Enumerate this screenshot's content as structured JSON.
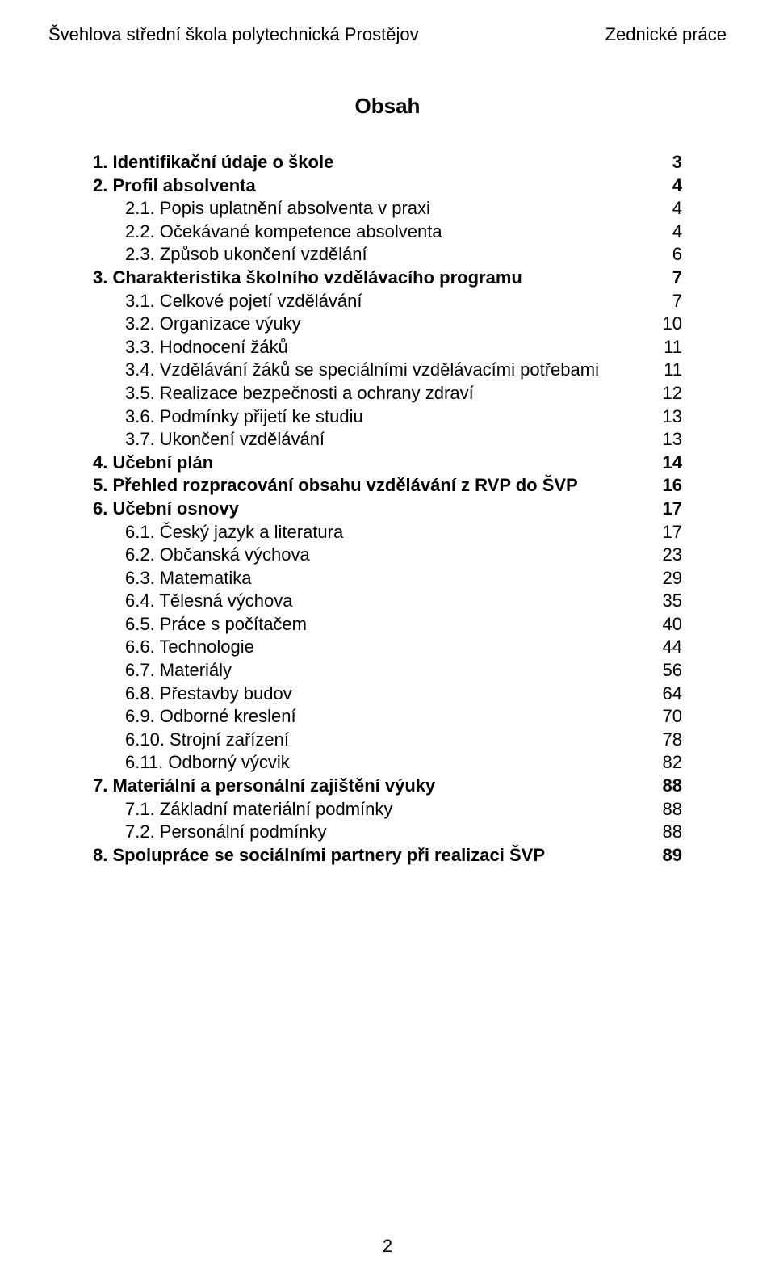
{
  "header": {
    "left": "Švehlova střední škola polytechnická Prostějov",
    "right": "Zednické práce"
  },
  "title": "Obsah",
  "toc": [
    {
      "label": "1.  Identifikační údaje o škole",
      "page": "3",
      "indent": 0,
      "bold": true
    },
    {
      "label": "2.  Profil absolventa",
      "page": "4",
      "indent": 0,
      "bold": true
    },
    {
      "label": "2.1. Popis uplatnění absolventa v praxi",
      "page": "4",
      "indent": 1,
      "bold": false
    },
    {
      "label": "2.2. Očekávané kompetence absolventa",
      "page": "4",
      "indent": 1,
      "bold": false
    },
    {
      "label": "2.3. Způsob ukončení vzdělání",
      "page": "6",
      "indent": 1,
      "bold": false
    },
    {
      "label": "3.  Charakteristika školního vzdělávacího programu",
      "page": "7",
      "indent": 0,
      "bold": true
    },
    {
      "label": "3.1. Celkové pojetí vzdělávání",
      "page": "7",
      "indent": 1,
      "bold": false
    },
    {
      "label": "3.2. Organizace výuky",
      "page": "10",
      "indent": 1,
      "bold": false
    },
    {
      "label": "3.3. Hodnocení žáků",
      "page": "11",
      "indent": 1,
      "bold": false
    },
    {
      "label": "3.4. Vzdělávání žáků se speciálními vzdělávacími potřebami",
      "page": "11",
      "indent": 1,
      "bold": false
    },
    {
      "label": "3.5. Realizace bezpečnosti a ochrany zdraví",
      "page": "12",
      "indent": 1,
      "bold": false
    },
    {
      "label": "3.6. Podmínky přijetí ke studiu",
      "page": "13",
      "indent": 1,
      "bold": false
    },
    {
      "label": "3.7. Ukončení vzdělávání",
      "page": "13",
      "indent": 1,
      "bold": false
    },
    {
      "label": "4.  Učební plán",
      "page": "14",
      "indent": 0,
      "bold": true
    },
    {
      "label": "5.  Přehled rozpracování obsahu vzdělávání z RVP do ŠVP",
      "page": "16",
      "indent": 0,
      "bold": true
    },
    {
      "label": "6.  Učební osnovy",
      "page": "17",
      "indent": 0,
      "bold": true
    },
    {
      "label": "6.1. Český jazyk a literatura",
      "page": "17",
      "indent": 1,
      "bold": false
    },
    {
      "label": "6.2. Občanská výchova",
      "page": "23",
      "indent": 1,
      "bold": false
    },
    {
      "label": "6.3. Matematika",
      "page": "29",
      "indent": 1,
      "bold": false
    },
    {
      "label": "6.4. Tělesná výchova",
      "page": "35",
      "indent": 1,
      "bold": false
    },
    {
      "label": "6.5. Práce s počítačem",
      "page": "40",
      "indent": 1,
      "bold": false
    },
    {
      "label": "6.6. Technologie",
      "page": "44",
      "indent": 1,
      "bold": false
    },
    {
      "label": "6.7. Materiály",
      "page": "56",
      "indent": 1,
      "bold": false
    },
    {
      "label": "6.8. Přestavby budov",
      "page": "64",
      "indent": 1,
      "bold": false
    },
    {
      "label": "6.9. Odborné kreslení",
      "page": "70",
      "indent": 1,
      "bold": false
    },
    {
      "label": "6.10. Strojní zařízení",
      "page": "78",
      "indent": 1,
      "bold": false
    },
    {
      "label": "6.11. Odborný výcvik",
      "page": "82",
      "indent": 1,
      "bold": false
    },
    {
      "label": "7.  Materiální a personální zajištění výuky",
      "page": "88",
      "indent": 0,
      "bold": true
    },
    {
      "label": "7.1. Základní materiální podmínky",
      "page": "88",
      "indent": 1,
      "bold": false
    },
    {
      "label": "7.2. Personální podmínky",
      "page": "88",
      "indent": 1,
      "bold": false
    },
    {
      "label": "8.  Spolupráce se sociálními partnery při realizaci ŠVP",
      "page": "89",
      "indent": 0,
      "bold": true
    }
  ],
  "pageNumber": "2"
}
